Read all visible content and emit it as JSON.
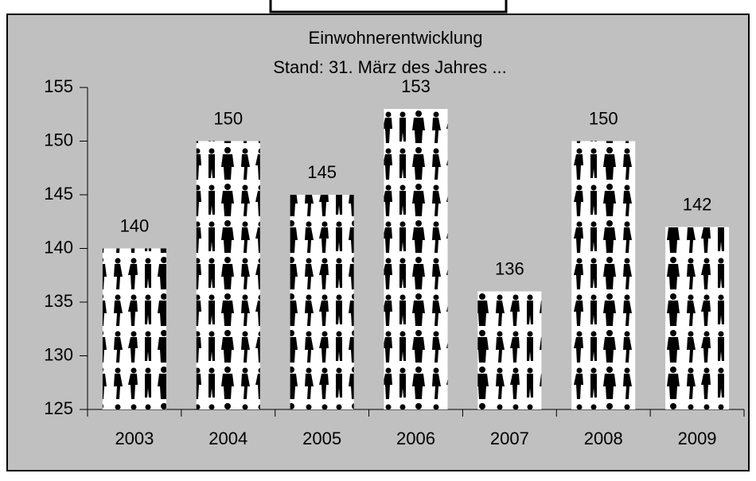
{
  "chart_data": {
    "type": "bar",
    "title": "Einwohnerentwicklung",
    "subtitle": "Stand: 31. März des Jahres ...",
    "categories": [
      "2003",
      "2004",
      "2005",
      "2006",
      "2007",
      "2008",
      "2009"
    ],
    "values": [
      140,
      150,
      145,
      153,
      136,
      150,
      142
    ],
    "ylim": [
      125,
      155
    ],
    "yticks": [
      125,
      130,
      135,
      140,
      145,
      150,
      155
    ],
    "grid": false
  }
}
